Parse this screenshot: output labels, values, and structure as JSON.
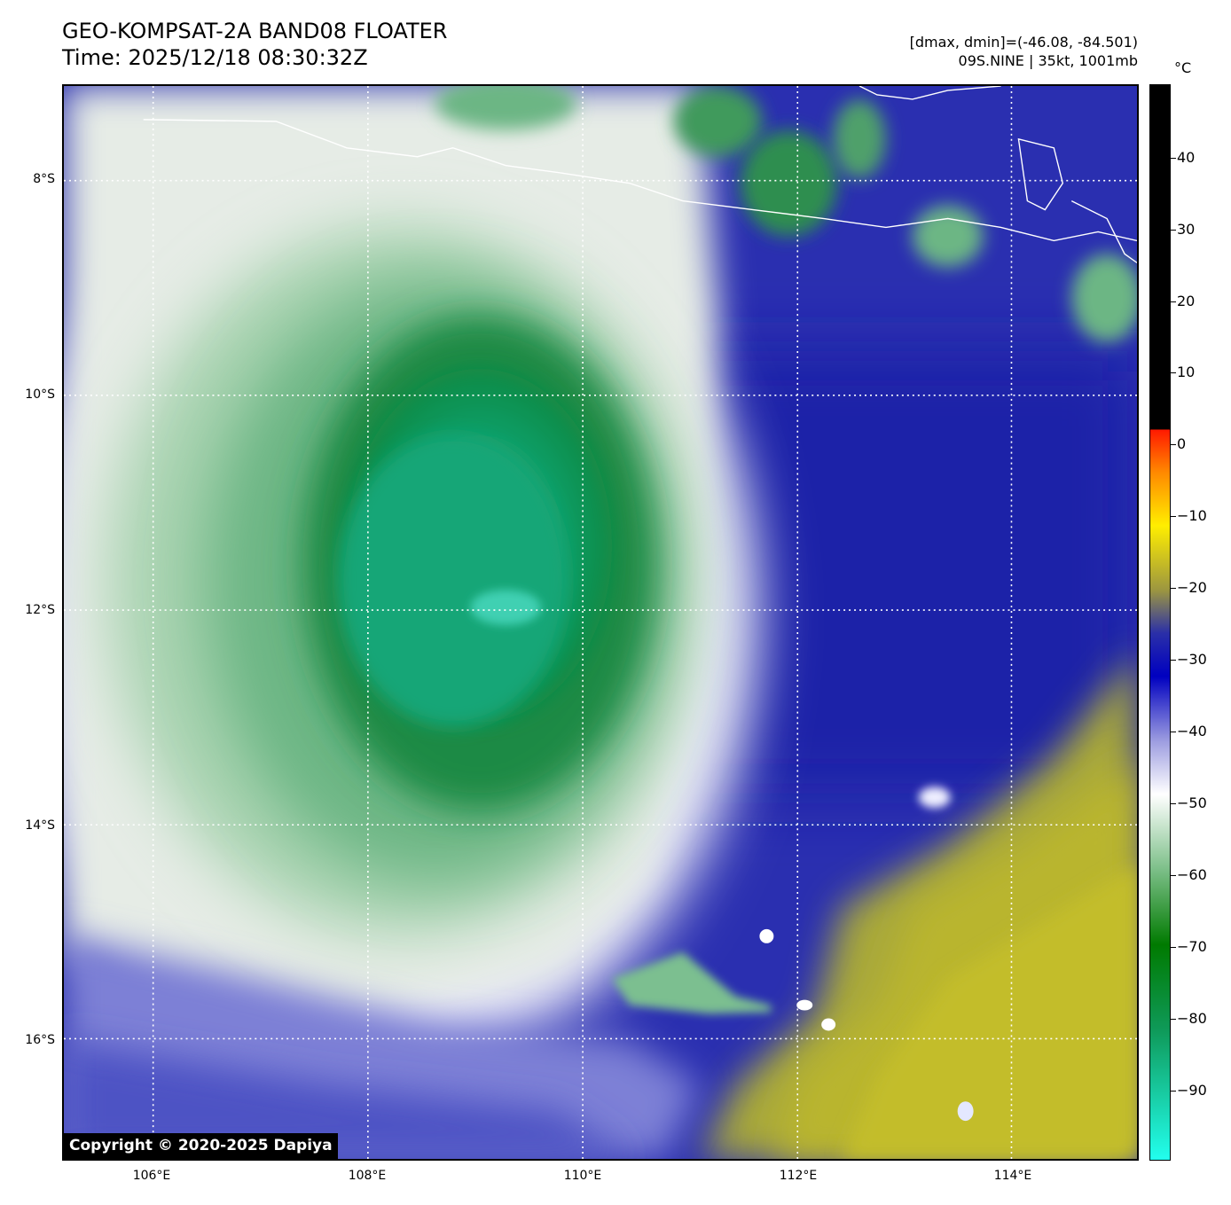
{
  "header": {
    "title": "GEO-KOMPSAT-2A BAND08 FLOATER",
    "time": "Time: 2025/12/18 08:30:32Z",
    "range": "[dmax, dmin]=(-46.08, -84.501)",
    "storm": "09S.NINE | 35kt, 1001mb"
  },
  "colorbar": {
    "unit": "°C",
    "labels": [
      "40",
      "30",
      "20",
      "10",
      "0",
      "−10",
      "−20",
      "−30",
      "−40",
      "−50",
      "−60",
      "−70",
      "−80",
      "−90"
    ]
  },
  "axes": {
    "lat_labels": [
      "8°S",
      "10°S",
      "12°S",
      "14°S",
      "16°S"
    ],
    "lon_labels": [
      "106°E",
      "108°E",
      "110°E",
      "112°E",
      "114°E"
    ]
  },
  "copyright": "Copyright © 2020-2025 Dapiya"
}
